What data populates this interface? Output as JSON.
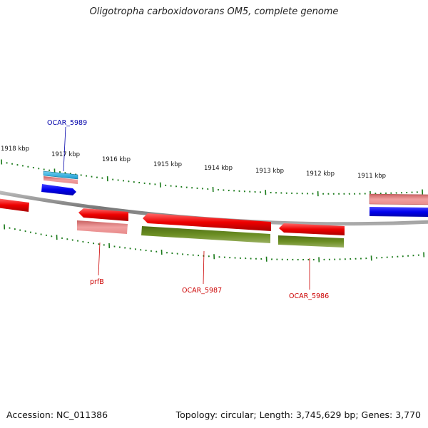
{
  "title": "Oligotropha carboxidovorans OM5, complete genome",
  "footer": {
    "accession": "Accession: NC_011386",
    "stats": "Topology: circular; Length: 3,745,629 bp; Genes: 3,770"
  },
  "scale_labels": [
    "1918 kbp",
    "1917 kbp",
    "1916 kbp",
    "1915 kbp",
    "1914 kbp",
    "1913 kbp",
    "1912 kbp",
    "1911 kbp"
  ],
  "gene_labels": {
    "ocar_5989": "OCAR_5989",
    "prfb": "prfB",
    "ocar_5987": "OCAR_5987",
    "ocar_5986": "OCAR_5986"
  },
  "colors": {
    "backbone": "#888888",
    "tick_green": "#1a7a1a",
    "gene_red": "#ee0000",
    "cds_pink": "#e88080",
    "gene_blue": "#0000ee",
    "gene_cyan": "#22aadd",
    "cds_olive": "#6b8e23",
    "label_red": "#cc0000",
    "label_blue": "#0000aa"
  }
}
